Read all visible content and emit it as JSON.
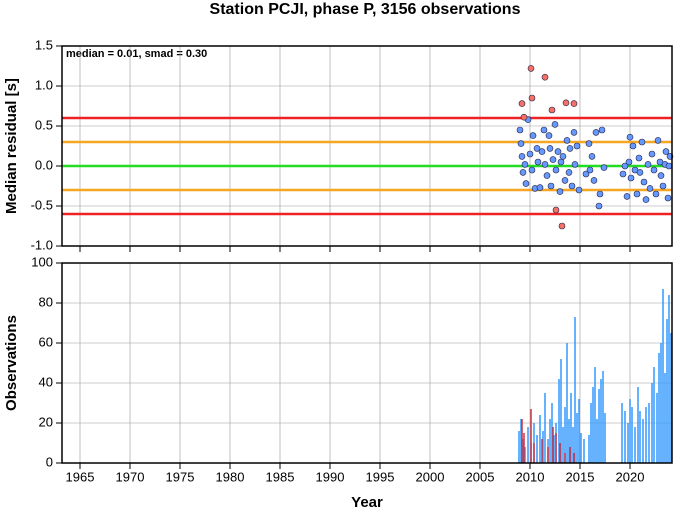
{
  "chart_data": [
    {
      "type": "scatter",
      "title": "Station PCJI, phase P, 3156 observations",
      "ylabel": "Median residual [s]",
      "annotation": "median = 0.01, smad = 0.30",
      "xlim": [
        1963.2,
        2024.2
      ],
      "xticks": [
        1965,
        1970,
        1975,
        1980,
        1985,
        1990,
        1995,
        2000,
        2005,
        2010,
        2015,
        2020
      ],
      "ylim": [
        -1,
        1.5
      ],
      "yticks": [
        {
          "value": -1,
          "label": "-1.0"
        },
        -0.5,
        {
          "value": 0,
          "label": "0.0"
        },
        0.5,
        {
          "value": 1,
          "label": "1.0"
        },
        1.5
      ],
      "grid": true,
      "hlines": [
        {
          "value": 0.6,
          "color": "#ee2222"
        },
        {
          "value": 0.3,
          "color": "#f5a623"
        },
        {
          "value": 0,
          "color": "#22dd22"
        },
        {
          "value": -0.3,
          "color": "#f5a623"
        },
        {
          "value": -0.6,
          "color": "#ee2222"
        }
      ],
      "series": [
        {
          "color": "#6699ff",
          "x": [
            2009.0,
            2009.1,
            2009.2,
            2009.3,
            2009.5,
            2009.6,
            2009.8,
            2010.0,
            2010.2,
            2010.3,
            2010.5,
            2010.7,
            2010.8,
            2011.0,
            2011.2,
            2011.4,
            2011.5,
            2011.7,
            2011.9,
            2012.0,
            2012.1,
            2012.3,
            2012.5,
            2012.6,
            2012.8,
            2013.0,
            2013.1,
            2013.3,
            2013.5,
            2013.7,
            2013.9,
            2014.0,
            2014.2,
            2014.4,
            2014.5,
            2014.7,
            2014.9,
            2015.6,
            2015.9,
            2016.0,
            2016.2,
            2016.4,
            2016.6,
            2016.9,
            2017.0,
            2017.2,
            2017.4,
            2019.3,
            2019.5,
            2019.7,
            2019.9,
            2020.0,
            2020.1,
            2020.3,
            2020.5,
            2020.7,
            2020.9,
            2021.0,
            2021.2,
            2021.4,
            2021.6,
            2021.8,
            2022.0,
            2022.2,
            2022.4,
            2022.6,
            2022.8,
            2023.0,
            2023.1,
            2023.3,
            2023.5,
            2023.6,
            2023.8,
            2023.9,
            2024.0
          ],
          "values": [
            0.45,
            0.28,
            0.12,
            -0.08,
            0.02,
            -0.22,
            0.58,
            0.15,
            -0.05,
            0.38,
            -0.28,
            0.22,
            0.05,
            -0.27,
            0.18,
            0.45,
            0.02,
            -0.12,
            0.38,
            0.22,
            -0.25,
            0.08,
            0.52,
            -0.05,
            0.18,
            -0.32,
            0.05,
            0.12,
            -0.18,
            0.32,
            -0.08,
            0.22,
            -0.25,
            0.42,
            0.02,
            0.25,
            -0.3,
            -0.1,
            0.28,
            -0.05,
            0.12,
            -0.18,
            0.42,
            -0.5,
            -0.35,
            0.45,
            -0.02,
            -0.1,
            0.0,
            -0.38,
            0.05,
            0.36,
            -0.15,
            0.25,
            -0.05,
            -0.35,
            0.1,
            -0.08,
            0.3,
            -0.2,
            -0.42,
            0.02,
            -0.28,
            0.15,
            -0.05,
            -0.35,
            0.32,
            0.05,
            -0.12,
            -0.25,
            0.02,
            0.18,
            -0.4,
            0.0,
            0.12
          ]
        },
        {
          "color": "#f47068",
          "x": [
            2009.2,
            2009.4,
            2010.1,
            2010.2,
            2011.5,
            2012.2,
            2013.6,
            2014.4,
            2012.6,
            2013.2
          ],
          "values": [
            0.78,
            0.61,
            1.22,
            0.85,
            1.11,
            0.7,
            0.79,
            0.78,
            -0.55,
            -0.75
          ]
        }
      ]
    },
    {
      "type": "bar",
      "ylabel": "Observations",
      "xlabel": "Year",
      "xlim": [
        1963.2,
        2024.2
      ],
      "xticks": [
        1965,
        1970,
        1975,
        1980,
        1985,
        1990,
        1995,
        2000,
        2005,
        2010,
        2015,
        2020
      ],
      "ylim": [
        0,
        100
      ],
      "yticks": [
        0,
        20,
        40,
        60,
        80,
        100
      ],
      "grid": true,
      "series": [
        {
          "color": "#3399ff",
          "x": [
            2008.9,
            2009.1,
            2009.3,
            2009.5,
            2009.8,
            2010.1,
            2010.4,
            2010.7,
            2011.0,
            2011.3,
            2011.5,
            2011.8,
            2012.0,
            2012.2,
            2012.4,
            2012.6,
            2012.9,
            2013.1,
            2013.3,
            2013.5,
            2013.7,
            2013.9,
            2014.1,
            2014.3,
            2014.5,
            2014.7,
            2014.9,
            2015.1,
            2015.4,
            2015.9,
            2016.1,
            2016.3,
            2016.5,
            2016.7,
            2016.9,
            2017.1,
            2017.3,
            2017.5,
            2019.2,
            2019.5,
            2019.8,
            2020.0,
            2020.2,
            2020.5,
            2020.8,
            2021.0,
            2021.3,
            2021.6,
            2021.9,
            2022.2,
            2022.4,
            2022.7,
            2022.9,
            2023.1,
            2023.3,
            2023.5,
            2023.7,
            2023.9,
            2024.1
          ],
          "values": [
            16,
            22,
            12,
            8,
            18,
            10,
            20,
            14,
            24,
            16,
            35,
            12,
            22,
            30,
            14,
            20,
            42,
            52,
            18,
            28,
            60,
            22,
            35,
            18,
            73,
            25,
            32,
            15,
            12,
            14,
            30,
            38,
            48,
            22,
            37,
            42,
            46,
            25,
            30,
            26,
            20,
            32,
            28,
            18,
            38,
            26,
            22,
            28,
            30,
            40,
            48,
            35,
            55,
            60,
            87,
            45,
            72,
            84,
            65
          ]
        },
        {
          "color": "#cc3344",
          "x": [
            2009.2,
            2009.4,
            2010.1,
            2010.4,
            2011.2,
            2011.8,
            2012.3,
            2012.6,
            2013.0,
            2013.5,
            2014.0,
            2014.4
          ],
          "values": [
            22,
            15,
            27,
            10,
            12,
            8,
            18,
            15,
            10,
            5,
            8,
            5
          ]
        }
      ]
    }
  ]
}
